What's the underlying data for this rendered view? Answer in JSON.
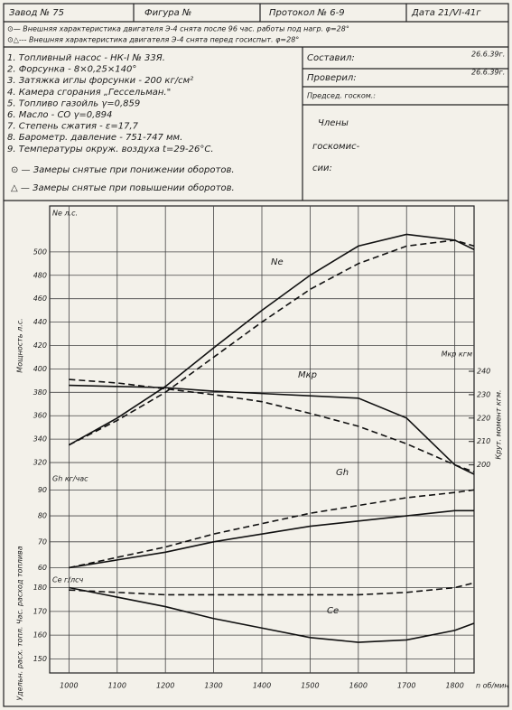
{
  "header": {
    "factory": "Завод № 75",
    "figure": "Фигура №",
    "protocol": "Протокол № 6-9",
    "date": "Дата 21/VI-41г",
    "line_after": "⊙— Внешняя характеристика двигателя Э-4 снята после 96 час. работы под нагр. φ=28°",
    "line_before": "⊙△--- Внешняя характеристика двигателя Э-4 снята перед госиспыт. φ=28°",
    "items": [
      "1. Топливный насос - НК-I № 33Я.",
      "2. Форсунка - 8×0,25×140°",
      "3. Затяжка иглы форсунки - 200 кг/см²",
      "4. Камера сгорания „Гессельман.\"",
      "5. Топливо газойль γ=0,859",
      "6. Масло - СО γ=0,894",
      "7. Степень сжатия - ε=17,7",
      "8. Барометр. давление - 751-747 мм.",
      "9. Температуры окруж. воздуха t=29-26°C."
    ],
    "legend": [
      "⊙ — Замеры снятые при понижении оборотов.",
      "△ — Замеры снятые при повышении оборотов."
    ],
    "sign": [
      "Составил:",
      "Проверил:",
      "Председ. госком.:"
    ],
    "sign_dates": [
      "26.6.39г.",
      "26.6.39г."
    ],
    "members": [
      "Члены",
      "госкомис-",
      "сии:"
    ]
  },
  "chart_data": [
    {
      "type": "line",
      "ylabel": "Мощность л.с.",
      "y_unit": "Ne л.с.",
      "y2label": "Крут. момент кгм.",
      "y2_unit": "Мкр кгм",
      "xlim": [
        960,
        1840
      ],
      "ylim": [
        310,
        530
      ],
      "yticks": [
        320,
        340,
        360,
        380,
        400,
        420,
        440,
        460,
        480,
        500
      ],
      "y2lim": [
        196,
        306
      ],
      "y2ticks": [
        200,
        210,
        220,
        230,
        240
      ],
      "grid": true,
      "x": [
        1000,
        1100,
        1200,
        1300,
        1400,
        1500,
        1600,
        1700,
        1800,
        1840
      ],
      "series": [
        {
          "name": "Ne",
          "dash": false,
          "values": [
            335,
            358,
            385,
            418,
            450,
            480,
            505,
            515,
            510,
            502
          ]
        },
        {
          "dash": true,
          "values": [
            335,
            356,
            380,
            410,
            440,
            468,
            490,
            505,
            510,
            505
          ]
        },
        {
          "name": "Мкр",
          "dash": false,
          "axis": "y2",
          "values": [
            234,
            233.5,
            233,
            231.5,
            230.5,
            229.5,
            228.5,
            220,
            200,
            196
          ]
        },
        {
          "dash": true,
          "axis": "y2",
          "values": [
            236.5,
            235,
            232.5,
            230,
            227,
            222,
            216.5,
            209,
            200,
            197
          ]
        }
      ]
    },
    {
      "type": "line",
      "y_unit": "Gh кг/час",
      "xlim": [
        960,
        1840
      ],
      "ylim": [
        56,
        95
      ],
      "yticks": [
        60,
        70,
        80,
        90
      ],
      "grid": true,
      "x": [
        1000,
        1100,
        1200,
        1300,
        1400,
        1500,
        1600,
        1700,
        1800,
        1840
      ],
      "series": [
        {
          "name": "Gh",
          "dash": false,
          "values": [
            60,
            63,
            66,
            70,
            73,
            76,
            78,
            80,
            82,
            82
          ]
        },
        {
          "dash": true,
          "values": [
            60,
            64,
            68,
            73,
            77,
            81,
            84,
            87,
            89,
            90
          ]
        }
      ]
    },
    {
      "type": "line",
      "ylabel": "Удельн. расх. топл. Час. расход топлива",
      "y_unit": "Ce г/лсч",
      "xlim": [
        960,
        1840
      ],
      "ylim": [
        146,
        184
      ],
      "yticks": [
        150,
        160,
        170,
        180
      ],
      "grid": true,
      "x": [
        1000,
        1100,
        1200,
        1300,
        1400,
        1500,
        1600,
        1700,
        1800,
        1840
      ],
      "xticks": [
        1000,
        1100,
        1200,
        1300,
        1400,
        1500,
        1600,
        1700,
        1800
      ],
      "xlabel": "n об/мин",
      "series": [
        {
          "name": "Ce",
          "dash": false,
          "values": [
            180,
            176,
            172,
            167,
            163,
            159,
            157,
            158,
            162,
            165
          ]
        },
        {
          "dash": true,
          "values": [
            179,
            178,
            177,
            177,
            177,
            177,
            177,
            178,
            180,
            182
          ]
        }
      ]
    }
  ]
}
